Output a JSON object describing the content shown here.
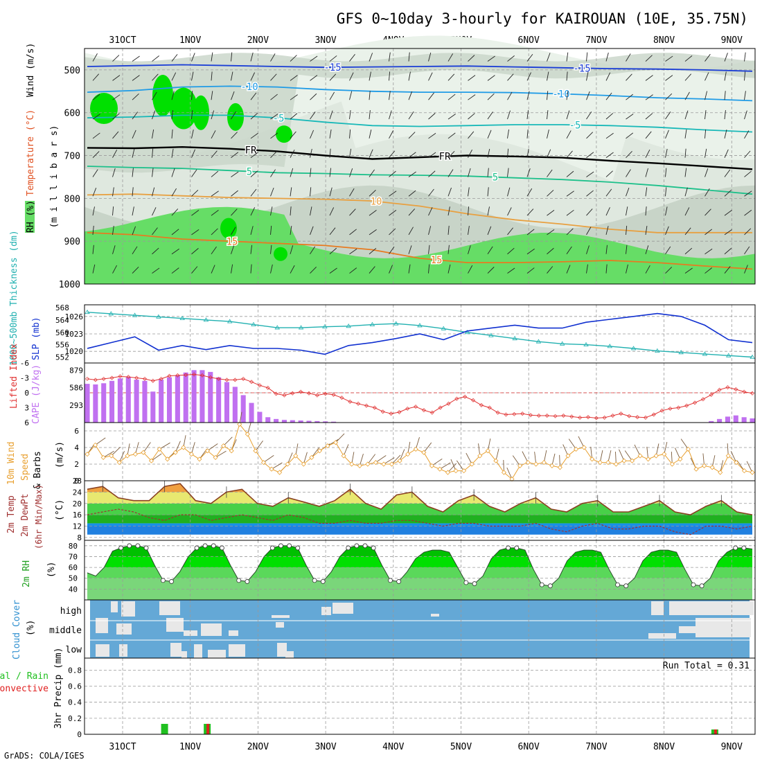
{
  "title": "GFS 0~10day 3-hourly for KAIROUAN (10E, 35.75N)",
  "credit": "GrADS: COLA/IGES",
  "dates": [
    "31OCT",
    "1NOV",
    "2NOV",
    "3NOV",
    "4NOV",
    "5NOV",
    "6NOV",
    "7NOV",
    "8NOV",
    "9NOV"
  ],
  "chart_data": [
    {
      "type": "heatmap",
      "id": "upper-air",
      "ylabel": "(m i l l i b a r s)",
      "legend": [
        "RH (%)",
        "Temperature (°C)",
        "Wind (m/s)"
      ],
      "ylim": [
        1000,
        450
      ],
      "yticks": [
        500,
        600,
        700,
        800,
        900,
        1000
      ],
      "isotherm_labels": [
        "-15",
        "-15",
        "-10",
        "-10",
        "-5",
        "-5",
        "FR",
        "FR",
        "5",
        "5",
        "10",
        "15",
        "15"
      ],
      "isotherms": [
        {
          "label": "-15",
          "color": "#1a3dd6",
          "level": [
            492,
            490,
            488,
            490,
            492,
            494,
            493,
            492,
            491,
            493,
            495,
            497,
            498,
            500,
            503
          ]
        },
        {
          "label": "-10",
          "color": "#1f9be6",
          "level": [
            552,
            548,
            540,
            538,
            540,
            546,
            550,
            552,
            552,
            553,
            556,
            560,
            565,
            568,
            572
          ]
        },
        {
          "label": "-5",
          "color": "#18b8b8",
          "level": [
            612,
            610,
            606,
            606,
            612,
            622,
            630,
            632,
            630,
            628,
            628,
            630,
            634,
            640,
            645
          ]
        },
        {
          "label": "FR",
          "color": "#000000",
          "level": [
            682,
            683,
            680,
            684,
            690,
            700,
            708,
            704,
            700,
            702,
            705,
            712,
            718,
            725,
            732
          ]
        },
        {
          "label": "5",
          "color": "#1cc08a",
          "level": [
            725,
            728,
            730,
            735,
            740,
            742,
            745,
            746,
            748,
            752,
            756,
            762,
            770,
            780,
            790
          ]
        },
        {
          "label": "10",
          "color": "#e8a040",
          "level": [
            792,
            790,
            794,
            798,
            800,
            802,
            806,
            818,
            836,
            850,
            860,
            872,
            880,
            880,
            880
          ]
        },
        {
          "label": "15",
          "color": "#e87a20",
          "level": [
            880,
            885,
            895,
            900,
            905,
            910,
            920,
            940,
            950,
            950,
            948,
            945,
            950,
            958,
            965
          ]
        }
      ],
      "rh_levels": [
        30,
        50,
        60,
        80,
        90
      ]
    },
    {
      "type": "line",
      "id": "slp-thickness",
      "ylabel_left": "1000~500mb Thickness (dm)",
      "ylabel_right": "SLP (mb)",
      "thickness_ticks": [
        552,
        556,
        560,
        564,
        568
      ],
      "slp_ticks": [
        1020,
        1023,
        1026
      ],
      "series": [
        {
          "name": "Thickness",
          "color": "#20b0b0",
          "values": [
            566.5,
            566,
            565.5,
            565,
            564.5,
            564,
            563.5,
            562.5,
            561.5,
            561.5,
            561.8,
            562,
            562.5,
            562.8,
            562.2,
            561.2,
            560,
            559,
            558,
            557,
            556.3,
            556,
            555.5,
            554.8,
            554,
            553.5,
            553,
            552.5,
            552
          ]
        },
        {
          "name": "SLP",
          "color": "#1030d0",
          "values": [
            1020.5,
            1021.5,
            1022.5,
            1020.2,
            1021,
            1020.3,
            1021,
            1020.5,
            1020.5,
            1020.2,
            1019.5,
            1021,
            1021.5,
            1022.2,
            1023,
            1022,
            1023.5,
            1024,
            1024.5,
            1024,
            1024,
            1025,
            1025.5,
            1026,
            1026.5,
            1026,
            1024.5,
            1022,
            1021.5
          ]
        }
      ]
    },
    {
      "type": "bar",
      "id": "cape-li",
      "ylabel_left": "Lifted Index",
      "ylabel_right": "CAPE (J/kg)",
      "li_ticks": [
        "-6",
        "-3",
        "0",
        "3",
        "6"
      ],
      "cape_ticks": [
        293,
        586,
        879
      ],
      "cape": [
        650,
        640,
        660,
        700,
        740,
        760,
        720,
        700,
        520,
        720,
        760,
        790,
        840,
        880,
        880,
        850,
        760,
        680,
        600,
        460,
        330,
        180,
        90,
        60,
        45,
        40,
        35,
        30,
        25,
        20,
        15,
        0,
        0,
        0,
        0,
        0,
        0,
        0,
        0,
        0,
        0,
        0,
        0,
        0,
        0,
        0,
        0,
        0,
        0,
        0,
        0,
        0,
        0,
        0,
        0,
        0,
        0,
        0,
        0,
        0,
        0,
        0,
        0,
        0,
        0,
        0,
        0,
        0,
        0,
        0,
        0,
        0,
        0,
        0,
        0,
        0,
        25,
        60,
        100,
        120,
        90,
        70
      ],
      "li": [
        -2.8,
        -2.6,
        -2.8,
        -3,
        -3.3,
        -3.2,
        -3,
        -2.8,
        -2.4,
        -2.8,
        -3.4,
        -3.5,
        -3.6,
        -3.7,
        -3.5,
        -3.1,
        -2.8,
        -2.6,
        -2.6,
        -2.8,
        -2.2,
        -1.5,
        -1.0,
        0.2,
        0.5,
        0.1,
        -0.2,
        0.1,
        0.5,
        0.2,
        0.4,
        1.0,
        1.8,
        2.2,
        2.6,
        3.0,
        3.8,
        4.2,
        3.9,
        3.2,
        2.8,
        3.5,
        4.0,
        3.0,
        2.2,
        1.2,
        0.8,
        1.5,
        2.5,
        3.0,
        4.0,
        4.4,
        4.3,
        4.2,
        4.5,
        4.6,
        4.6,
        4.7,
        4.6,
        4.8,
        5.0,
        4.9,
        5.1,
        5.0,
        4.6,
        4.2,
        4.7,
        4.9,
        5.0,
        4.4,
        3.6,
        3.2,
        3.0,
        2.6,
        2.0,
        1.3,
        0.4,
        -0.6,
        -1.1,
        -0.7,
        -0.2,
        0.1
      ]
    },
    {
      "type": "line",
      "id": "wind10m",
      "ylabel": "10m Wind Speed & Barbs (m/s)",
      "yticks": [
        0,
        2,
        4,
        6
      ],
      "ylim": [
        0,
        7
      ],
      "series": [
        {
          "name": "10m Wind Speed",
          "color": "#e8a030",
          "values": [
            3.2,
            4.3,
            2.8,
            3.0,
            2.2,
            3.0,
            3.2,
            3.4,
            2.4,
            3.8,
            2.6,
            3.4,
            4.0,
            3.2,
            2.6,
            3.6,
            2.8,
            4.2,
            3.6,
            6.8,
            5.6,
            3.6,
            2.2,
            1.4,
            1.0,
            2.0,
            3.0,
            2.0,
            2.8,
            3.6,
            4.2,
            4.6,
            3.0,
            2.0,
            1.8,
            2.0,
            2.2,
            2.0,
            2.0,
            2.4,
            3.2,
            3.8,
            3.4,
            1.8,
            1.4,
            1.0,
            1.2,
            1.2,
            2.0,
            3.0,
            3.6,
            2.4,
            1.0,
            0.2,
            1.8,
            2.2,
            2.0,
            2.2,
            1.8,
            1.6,
            3.0,
            3.8,
            4.0,
            2.6,
            2.2,
            2.2,
            2.0,
            2.4,
            2.4,
            3.0,
            2.6,
            3.0,
            3.2,
            2.0,
            2.6,
            3.8,
            1.4,
            1.8,
            1.6,
            1.0,
            3.0,
            2.2,
            1.2,
            1.0
          ]
        }
      ]
    },
    {
      "type": "area",
      "id": "temp2m",
      "ylabel": "2m Temp 2m DewPt (6hr Min/Max) (°C)",
      "yticks": [
        8,
        12,
        16,
        20,
        24,
        28
      ],
      "ylim": [
        7,
        28
      ],
      "series": [
        {
          "name": "Temp",
          "values": [
            25,
            26,
            22,
            21,
            21,
            26,
            27,
            21,
            20,
            24,
            25,
            20,
            19,
            22,
            20.5,
            19,
            21,
            25,
            20,
            18,
            23,
            24,
            19,
            17,
            21,
            23,
            19,
            17,
            20,
            22,
            18,
            17,
            20,
            21,
            17,
            17,
            19,
            21,
            17,
            16,
            19,
            21,
            17,
            16
          ]
        },
        {
          "name": "DewPt",
          "values": [
            16,
            17,
            18,
            17,
            15,
            14,
            16,
            16,
            14,
            15,
            16,
            15,
            14,
            16,
            15,
            13,
            13,
            14,
            13,
            13,
            14,
            14,
            13,
            12,
            13,
            13,
            12,
            12,
            12,
            13,
            11,
            10,
            12,
            13,
            11,
            11,
            12,
            12,
            10,
            9,
            12,
            12,
            11,
            12
          ]
        }
      ]
    },
    {
      "type": "area",
      "id": "rh2m",
      "ylabel": "2m RH (%)",
      "yticks": [
        40,
        50,
        60,
        70,
        80
      ],
      "ylim": [
        30,
        85
      ],
      "series": [
        {
          "name": "RH",
          "values": [
            55,
            52,
            60,
            75,
            78,
            80,
            80,
            78,
            62,
            48,
            47,
            56,
            70,
            78,
            80,
            80,
            78,
            62,
            48,
            47,
            56,
            70,
            78,
            80,
            80,
            78,
            62,
            48,
            47,
            56,
            70,
            78,
            80,
            80,
            78,
            62,
            48,
            47,
            56,
            68,
            74,
            76,
            76,
            74,
            60,
            46,
            45,
            52,
            68,
            76,
            78,
            78,
            76,
            58,
            44,
            43,
            50,
            66,
            74,
            76,
            76,
            74,
            58,
            44,
            43,
            50,
            66,
            74,
            76,
            76,
            74,
            58,
            44,
            43,
            50,
            66,
            74,
            78,
            78,
            77
          ]
        }
      ]
    },
    {
      "type": "heatmap",
      "id": "cloud-cover",
      "ylabel": "Cloud Cover (%)",
      "rows": [
        "high",
        "middle",
        "low"
      ]
    },
    {
      "type": "bar",
      "id": "precip",
      "ylabel": "3hr Precip (mm)",
      "legend_left": "Total / Rain",
      "legend_left2": "Convective",
      "annotation": "Run Total = 0.31",
      "yticks": [
        "0",
        "0.2",
        "0.4",
        "0.6",
        "0.8"
      ],
      "ylim": [
        0,
        0.95
      ],
      "bars": [
        {
          "day": 0.62,
          "total": 0.13,
          "conv": 0.0
        },
        {
          "day": 1.25,
          "total": 0.13,
          "conv": 0.13
        },
        {
          "day": 8.75,
          "total": 0.06,
          "conv": 0.06
        }
      ]
    }
  ],
  "colors": {
    "rh_light": "#eaf2ea",
    "rh_mid": "#c8d4c8",
    "rh_green1": "#66dd66",
    "rh_green2": "#00e000",
    "cape_bar": "#c070f0",
    "li_line": "#e03030",
    "cloud_blue": "#64a8d6",
    "cloud_light": "#e8e8e8",
    "precip_green": "#20c020",
    "precip_red": "#e02020"
  }
}
